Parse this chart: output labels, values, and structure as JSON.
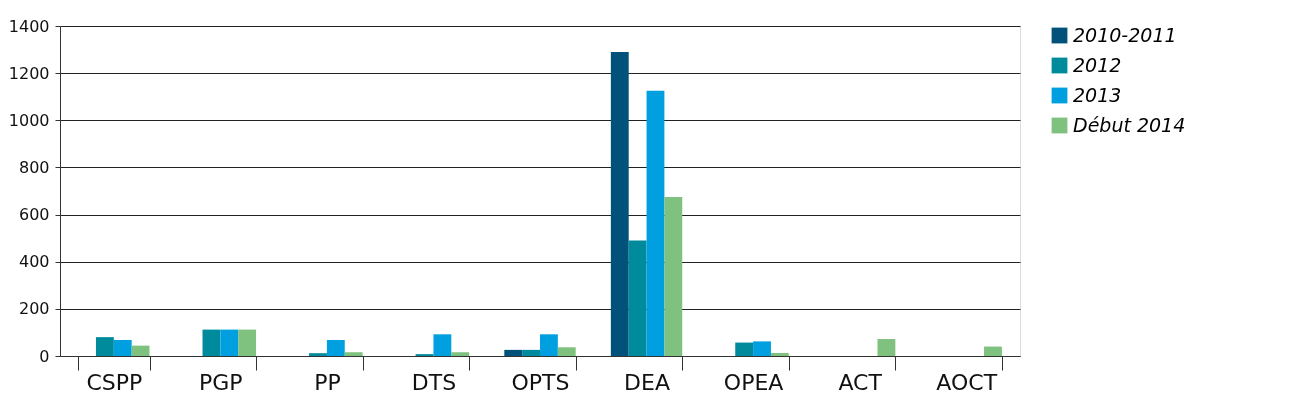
{
  "chart_data": {
    "type": "bar",
    "categories": [
      "CSPP",
      "PGP",
      "PP",
      "DTS",
      "OPTS",
      "DEA",
      "OPEA",
      "ACT",
      "AOCT"
    ],
    "series": [
      {
        "name": "2010-2011",
        "color": "#00527a",
        "values": [
          null,
          null,
          null,
          null,
          26,
          1290,
          null,
          null,
          null
        ]
      },
      {
        "name": "2012",
        "color": "#008b9c",
        "values": [
          80,
          112,
          12,
          8,
          26,
          490,
          57,
          null,
          null
        ]
      },
      {
        "name": "2013",
        "color": "#009fe0",
        "values": [
          68,
          112,
          68,
          92,
          92,
          1125,
          62,
          null,
          null
        ]
      },
      {
        "name": "Début 2014",
        "color": "#7fc17f",
        "values": [
          44,
          112,
          16,
          16,
          37,
          675,
          13,
          72,
          40
        ]
      }
    ],
    "ylim": [
      0,
      1400
    ],
    "yticks": [
      0,
      200,
      400,
      600,
      800,
      1000,
      1200,
      1400
    ],
    "grid": "y",
    "legend": "right"
  }
}
